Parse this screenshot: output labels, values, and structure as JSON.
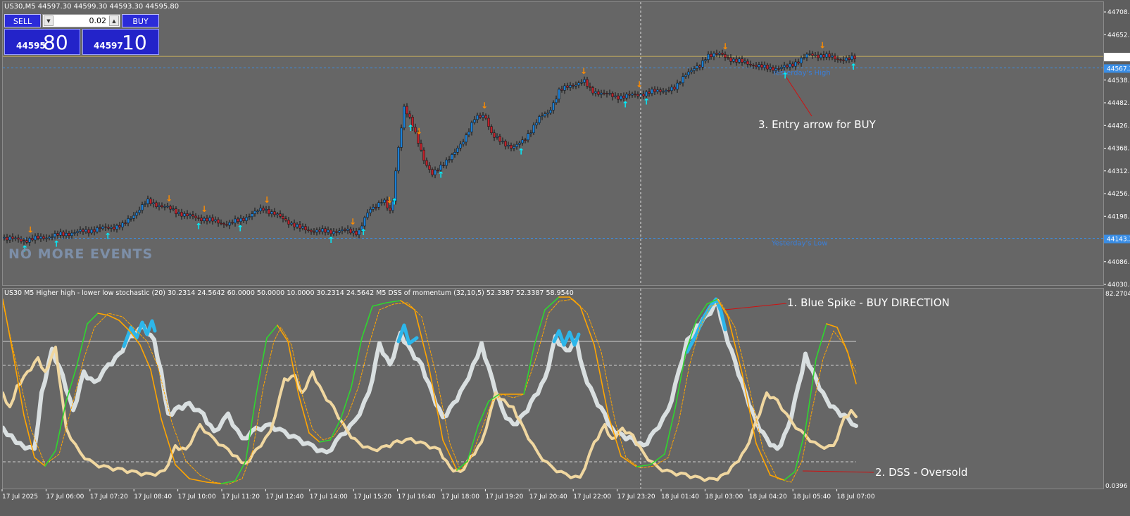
{
  "main": {
    "title": "US30,M5  44597.30 44599.30 44593.30 44595.80",
    "no_events": "NO MORE EVENTS",
    "yesterday_high_label": "Yesterday's High",
    "yesterday_low_label": "Yesterday's Low",
    "entry_annotation": "3. Entry arrow for BUY"
  },
  "trade_panel": {
    "sell_label": "SELL",
    "buy_label": "BUY",
    "lot_value": "0.02",
    "sell_quote_small": "44595",
    "sell_quote_big": "80",
    "buy_quote_small": "44597",
    "buy_quote_big": "10",
    "colors": {
      "button": "#2b2bd9",
      "quote": "#2323c9"
    }
  },
  "indicator": {
    "title": "US30 M5  Higher high - lower low stochastic (20) 30.2314 24.5642 60.0000 50.0000 10.0000 30.2314 24.5642  M5 DSS of momentum (32,10,5) 52.3387 52.3387 58.9540",
    "annotation_spike": "1. Blue Spike - BUY DIRECTION",
    "annotation_oversold": "2. DSS - Oversold",
    "scale_top": "82.2704",
    "scale_bottom": "0.0396"
  },
  "price_axis": [
    "44708.0",
    "44652.0",
    "44595.8",
    "44538.7",
    "44482.6",
    "44426.5",
    "44368.7",
    "44312.6",
    "44256.5",
    "44198.7",
    "44142.6",
    "44086.5",
    "44030.4"
  ],
  "price_tags": {
    "current": "44595.8",
    "yh": "44567.3",
    "yl": "44143.3"
  },
  "time_axis": [
    "17 Jul 2025",
    "17 Jul 06:00",
    "17 Jul 07:20",
    "17 Jul 08:40",
    "17 Jul 10:00",
    "17 Jul 11:20",
    "17 Jul 12:40",
    "17 Jul 14:00",
    "17 Jul 15:20",
    "17 Jul 16:40",
    "17 Jul 18:00",
    "17 Jul 19:20",
    "17 Jul 20:40",
    "17 Jul 22:00",
    "17 Jul 23:20",
    "18 Jul 01:40",
    "18 Jul 03:00",
    "18 Jul 04:20",
    "18 Jul 05:40",
    "18 Jul 07:00"
  ],
  "colors": {
    "chart_bg": "#666666",
    "bull_candle": "#1a7fd6",
    "bear_candle": "#c0202a",
    "up_arrow": "#00f0ff",
    "down_arrow": "#ff8c00",
    "stoch_main": "#d9dfe0",
    "stoch_spike": "#2db6ea",
    "stoch_signal": "#f0d7a0",
    "dss_green": "#2fd62f",
    "dss_orange": "#ffa500",
    "level_line": "#d0d0d0",
    "ask_line": "#c9b15e",
    "yesterday_line": "#3a8ee6"
  }
}
